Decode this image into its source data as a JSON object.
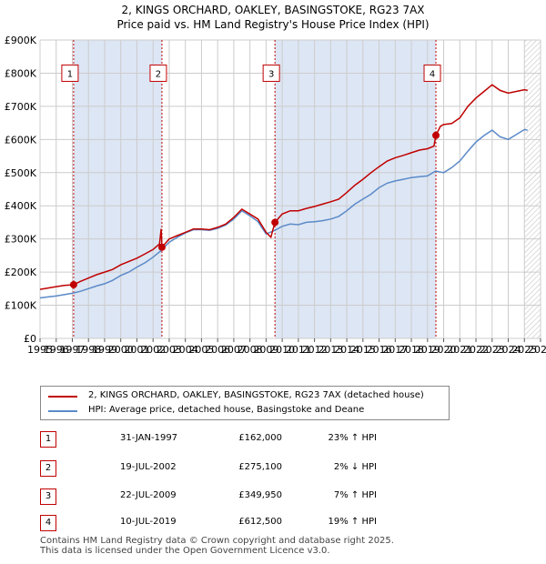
{
  "header": {
    "title_line1": "2, KINGS ORCHARD, OAKLEY, BASINGSTOKE, RG23 7AX",
    "title_line2": "Price paid vs. HM Land Registry's House Price Index (HPI)"
  },
  "colors": {
    "property": "#c00000",
    "hpi": "#5b8ac8",
    "shade": "#dde6f4",
    "grid": "#cccccc",
    "marker_border": "#c00000"
  },
  "chart_data": {
    "type": "line",
    "title": "Price paid vs. HM Land Registry's House Price Index (HPI)",
    "xlabel": "",
    "ylabel": "",
    "xlim": [
      1995,
      2026
    ],
    "ylim": [
      0,
      900000
    ],
    "grid": true,
    "x_ticks": [
      "1995",
      "1996",
      "1997",
      "1998",
      "1999",
      "2000",
      "2001",
      "2002",
      "2003",
      "2004",
      "2005",
      "2006",
      "2007",
      "2008",
      "2009",
      "2010",
      "2011",
      "2012",
      "2013",
      "2014",
      "2015",
      "2016",
      "2017",
      "2018",
      "2019",
      "2020",
      "2021",
      "2022",
      "2023",
      "2024",
      "2025",
      "2026"
    ],
    "y_ticks": [
      {
        "value": 0,
        "label": "£0"
      },
      {
        "value": 100000,
        "label": "£100K"
      },
      {
        "value": 200000,
        "label": "£200K"
      },
      {
        "value": 300000,
        "label": "£300K"
      },
      {
        "value": 400000,
        "label": "£400K"
      },
      {
        "value": 500000,
        "label": "£500K"
      },
      {
        "value": 600000,
        "label": "£600K"
      },
      {
        "value": 700000,
        "label": "£700K"
      },
      {
        "value": 800000,
        "label": "£800K"
      },
      {
        "value": 900000,
        "label": "£900K"
      }
    ],
    "shaded_spans": [
      [
        1997.08,
        2002.55
      ],
      [
        2009.55,
        2019.52
      ]
    ],
    "future_hatch_from": 2025.0,
    "series": [
      {
        "name": "2, KINGS ORCHARD, OAKLEY, BASINGSTOKE, RG23 7AX (detached house)",
        "role": "property",
        "points": [
          [
            1995.0,
            148000
          ],
          [
            1995.5,
            152000
          ],
          [
            1996.0,
            156000
          ],
          [
            1996.5,
            160000
          ],
          [
            1997.08,
            162000
          ],
          [
            1997.5,
            172000
          ],
          [
            1998.0,
            182000
          ],
          [
            1998.5,
            192000
          ],
          [
            1999.0,
            200000
          ],
          [
            1999.5,
            208000
          ],
          [
            2000.0,
            222000
          ],
          [
            2000.5,
            232000
          ],
          [
            2001.0,
            242000
          ],
          [
            2001.5,
            255000
          ],
          [
            2002.0,
            268000
          ],
          [
            2002.4,
            285000
          ],
          [
            2002.5,
            330000
          ],
          [
            2002.55,
            275100
          ],
          [
            2003.0,
            300000
          ],
          [
            2003.5,
            310000
          ],
          [
            2004.0,
            320000
          ],
          [
            2004.5,
            330000
          ],
          [
            2005.0,
            330000
          ],
          [
            2005.5,
            328000
          ],
          [
            2006.0,
            335000
          ],
          [
            2006.5,
            345000
          ],
          [
            2007.0,
            365000
          ],
          [
            2007.5,
            390000
          ],
          [
            2008.0,
            375000
          ],
          [
            2008.5,
            360000
          ],
          [
            2009.0,
            320000
          ],
          [
            2009.3,
            305000
          ],
          [
            2009.55,
            349950
          ],
          [
            2010.0,
            375000
          ],
          [
            2010.5,
            385000
          ],
          [
            2011.0,
            385000
          ],
          [
            2011.5,
            392000
          ],
          [
            2012.0,
            398000
          ],
          [
            2012.5,
            405000
          ],
          [
            2013.0,
            412000
          ],
          [
            2013.5,
            420000
          ],
          [
            2014.0,
            440000
          ],
          [
            2014.5,
            462000
          ],
          [
            2015.0,
            480000
          ],
          [
            2015.5,
            500000
          ],
          [
            2016.0,
            518000
          ],
          [
            2016.5,
            535000
          ],
          [
            2017.0,
            545000
          ],
          [
            2017.5,
            552000
          ],
          [
            2018.0,
            560000
          ],
          [
            2018.5,
            568000
          ],
          [
            2019.0,
            572000
          ],
          [
            2019.4,
            580000
          ],
          [
            2019.52,
            612500
          ],
          [
            2019.8,
            640000
          ],
          [
            2020.0,
            645000
          ],
          [
            2020.5,
            648000
          ],
          [
            2021.0,
            665000
          ],
          [
            2021.5,
            700000
          ],
          [
            2022.0,
            725000
          ],
          [
            2022.5,
            745000
          ],
          [
            2023.0,
            765000
          ],
          [
            2023.5,
            748000
          ],
          [
            2024.0,
            740000
          ],
          [
            2024.5,
            745000
          ],
          [
            2025.0,
            750000
          ],
          [
            2025.2,
            748000
          ]
        ]
      },
      {
        "name": "HPI: Average price, detached house, Basingstoke and Deane",
        "role": "hpi",
        "points": [
          [
            1995.0,
            122000
          ],
          [
            1995.5,
            125000
          ],
          [
            1996.0,
            128000
          ],
          [
            1996.5,
            132000
          ],
          [
            1997.0,
            136000
          ],
          [
            1997.5,
            142000
          ],
          [
            1998.0,
            150000
          ],
          [
            1998.5,
            158000
          ],
          [
            1999.0,
            165000
          ],
          [
            1999.5,
            175000
          ],
          [
            2000.0,
            190000
          ],
          [
            2000.5,
            200000
          ],
          [
            2001.0,
            215000
          ],
          [
            2001.5,
            228000
          ],
          [
            2002.0,
            245000
          ],
          [
            2002.5,
            265000
          ],
          [
            2003.0,
            290000
          ],
          [
            2003.5,
            305000
          ],
          [
            2004.0,
            318000
          ],
          [
            2004.5,
            328000
          ],
          [
            2005.0,
            328000
          ],
          [
            2005.5,
            326000
          ],
          [
            2006.0,
            332000
          ],
          [
            2006.5,
            342000
          ],
          [
            2007.0,
            360000
          ],
          [
            2007.5,
            385000
          ],
          [
            2008.0,
            370000
          ],
          [
            2008.5,
            352000
          ],
          [
            2009.0,
            315000
          ],
          [
            2009.5,
            325000
          ],
          [
            2010.0,
            338000
          ],
          [
            2010.5,
            345000
          ],
          [
            2011.0,
            343000
          ],
          [
            2011.5,
            350000
          ],
          [
            2012.0,
            352000
          ],
          [
            2012.5,
            355000
          ],
          [
            2013.0,
            360000
          ],
          [
            2013.5,
            368000
          ],
          [
            2014.0,
            385000
          ],
          [
            2014.5,
            405000
          ],
          [
            2015.0,
            420000
          ],
          [
            2015.5,
            435000
          ],
          [
            2016.0,
            455000
          ],
          [
            2016.5,
            468000
          ],
          [
            2017.0,
            475000
          ],
          [
            2017.5,
            480000
          ],
          [
            2018.0,
            485000
          ],
          [
            2018.5,
            488000
          ],
          [
            2019.0,
            490000
          ],
          [
            2019.5,
            505000
          ],
          [
            2020.0,
            500000
          ],
          [
            2020.5,
            515000
          ],
          [
            2021.0,
            535000
          ],
          [
            2021.5,
            565000
          ],
          [
            2022.0,
            592000
          ],
          [
            2022.5,
            612000
          ],
          [
            2023.0,
            628000
          ],
          [
            2023.5,
            608000
          ],
          [
            2024.0,
            600000
          ],
          [
            2024.5,
            615000
          ],
          [
            2025.0,
            630000
          ],
          [
            2025.2,
            628000
          ]
        ]
      }
    ],
    "sales": [
      {
        "label": "1",
        "x": 1997.08,
        "y": 162000
      },
      {
        "label": "2",
        "x": 2002.55,
        "y": 275100
      },
      {
        "label": "3",
        "x": 2009.55,
        "y": 349950
      },
      {
        "label": "4",
        "x": 2019.52,
        "y": 612500
      }
    ],
    "annotation_y": 800000
  },
  "legend": {
    "property_label": "2, KINGS ORCHARD, OAKLEY, BASINGSTOKE, RG23 7AX (detached house)",
    "hpi_label": "HPI: Average price, detached house, Basingstoke and Deane"
  },
  "transactions": [
    {
      "num": "1",
      "date": "31-JAN-1997",
      "price": "£162,000",
      "hpi": "23% ↑ HPI"
    },
    {
      "num": "2",
      "date": "19-JUL-2002",
      "price": "£275,100",
      "hpi": "2% ↓ HPI"
    },
    {
      "num": "3",
      "date": "22-JUL-2009",
      "price": "£349,950",
      "hpi": "7% ↑ HPI"
    },
    {
      "num": "4",
      "date": "10-JUL-2019",
      "price": "£612,500",
      "hpi": "19% ↑ HPI"
    }
  ],
  "footer": {
    "line1": "Contains HM Land Registry data © Crown copyright and database right 2025.",
    "line2": "This data is licensed under the Open Government Licence v3.0."
  }
}
